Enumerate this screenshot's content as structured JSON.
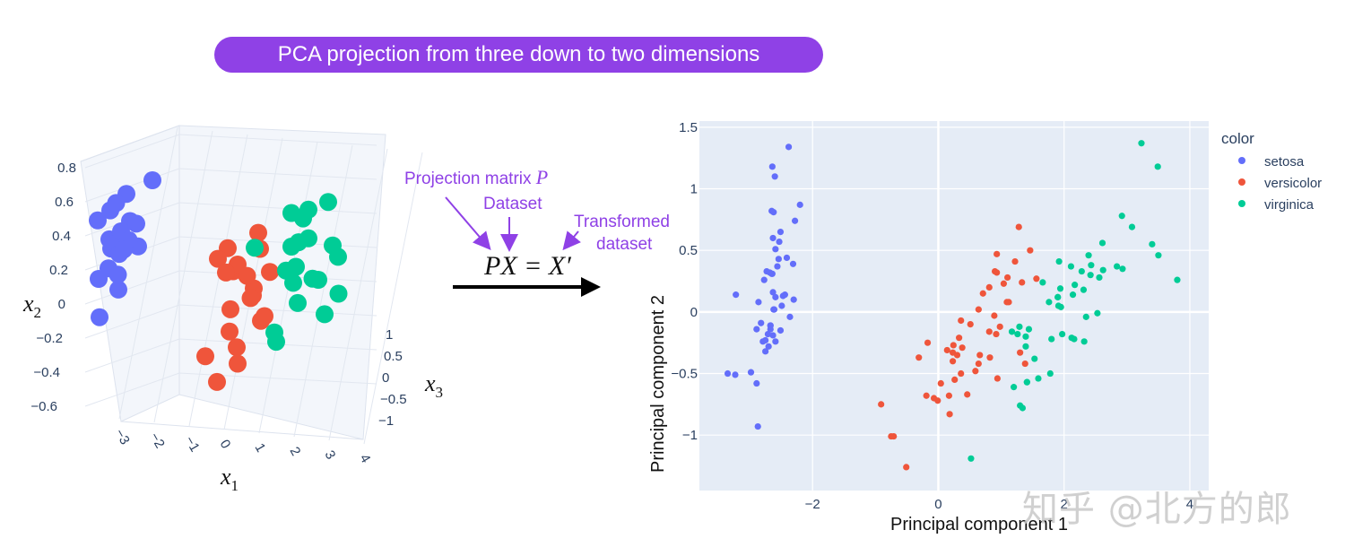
{
  "banner": {
    "title": "PCA projection from three down to two dimensions"
  },
  "annotations": {
    "projection_matrix": "Projection matrix",
    "projection_symbol": "P",
    "dataset": "Dataset",
    "transformed_line1": "Transformed",
    "transformed_line2": "dataset",
    "equation": "PX = X′"
  },
  "colors": {
    "banner": "#8f41e6",
    "annotation": "#8f41e6",
    "setosa": "#636efa",
    "versicolor": "#ef553b",
    "virginica": "#00cc96",
    "plot_bg": "#e5ecf6",
    "axis_text": "#2a3f5f"
  },
  "watermark": "知乎 @北方的郎",
  "chart_data": [
    {
      "type": "scatter3d",
      "axes": {
        "x1": {
          "label": "x",
          "subscript": "1",
          "ticks": [
            "−3",
            "−2",
            "−1",
            "0",
            "1",
            "2",
            "3",
            "4"
          ]
        },
        "x2": {
          "label": "x",
          "subscript": "2",
          "ticks": [
            "0.8",
            "0.6",
            "0.4",
            "0.2",
            "0",
            "−0.2",
            "−0.4",
            "−0.6"
          ]
        },
        "x3": {
          "label": "x",
          "subscript": "3",
          "ticks": [
            "1",
            "0.5",
            "0",
            "−0.5",
            "−1"
          ]
        }
      },
      "series": [
        {
          "name": "setosa",
          "points": [
            [
              -2.7,
              0.4,
              -0.1
            ],
            [
              -2.5,
              0.5,
              0.2
            ],
            [
              -2.9,
              0.3,
              0.1
            ],
            [
              -2.6,
              0.2,
              -0.2
            ],
            [
              -2.8,
              0.6,
              0.0
            ],
            [
              -2.4,
              0.3,
              0.3
            ],
            [
              -3.0,
              0.1,
              -0.1
            ],
            [
              -2.6,
              0.7,
              0.2
            ],
            [
              -2.3,
              0.4,
              -0.3
            ],
            [
              -2.7,
              0.0,
              0.1
            ],
            [
              -2.5,
              0.45,
              0.0
            ],
            [
              -2.8,
              0.25,
              0.2
            ],
            [
              -2.2,
              0.5,
              0.1
            ],
            [
              -2.9,
              0.55,
              -0.2
            ],
            [
              -2.6,
              0.35,
              0.25
            ],
            [
              -2.4,
              0.15,
              -0.15
            ],
            [
              -2.7,
              0.65,
              0.05
            ],
            [
              -2.55,
              0.3,
              0.1
            ],
            [
              -3.1,
              -0.2,
              0.0
            ],
            [
              -2.0,
              0.8,
              0.3
            ]
          ]
        },
        {
          "name": "versicolor",
          "points": [
            [
              0.5,
              0.2,
              0.1
            ],
            [
              0.8,
              0.0,
              0.3
            ],
            [
              1.0,
              0.3,
              -0.2
            ],
            [
              0.3,
              -0.1,
              0.2
            ],
            [
              1.2,
              0.1,
              0.0
            ],
            [
              0.6,
              0.4,
              -0.1
            ],
            [
              0.9,
              -0.2,
              0.4
            ],
            [
              1.4,
              0.2,
              0.2
            ],
            [
              0.2,
              0.3,
              0.0
            ],
            [
              1.1,
              -0.3,
              -0.3
            ],
            [
              0.7,
              0.15,
              0.25
            ],
            [
              1.3,
              0.05,
              -0.15
            ],
            [
              0.4,
              -0.25,
              0.1
            ],
            [
              1.0,
              0.35,
              0.3
            ],
            [
              0.1,
              -0.4,
              -0.2
            ],
            [
              1.5,
              -0.1,
              0.0
            ],
            [
              0.8,
              0.25,
              -0.3
            ],
            [
              0.5,
              -0.5,
              0.2
            ],
            [
              1.2,
              0.5,
              0.1
            ],
            [
              0.3,
              -0.6,
              -0.1
            ]
          ]
        },
        {
          "name": "virginica",
          "points": [
            [
              2.0,
              0.4,
              0.2
            ],
            [
              2.5,
              0.3,
              -0.1
            ],
            [
              2.2,
              0.6,
              0.3
            ],
            [
              3.0,
              0.2,
              0.0
            ],
            [
              1.8,
              0.1,
              0.4
            ],
            [
              2.7,
              0.5,
              -0.2
            ],
            [
              2.3,
              0.0,
              0.1
            ],
            [
              3.3,
              0.35,
              0.2
            ],
            [
              1.6,
              0.45,
              -0.3
            ],
            [
              2.8,
              -0.1,
              0.3
            ],
            [
              2.1,
              0.25,
              0.0
            ],
            [
              2.6,
              0.7,
              0.1
            ],
            [
              1.9,
              -0.2,
              -0.1
            ],
            [
              3.1,
              0.55,
              -0.3
            ],
            [
              2.4,
              0.15,
              0.35
            ],
            [
              3.5,
              0.1,
              0.05
            ],
            [
              2.0,
              0.65,
              0.2
            ],
            [
              2.9,
              0.4,
              0.4
            ],
            [
              1.7,
              -0.3,
              0.1
            ],
            [
              3.4,
              0.8,
              -0.1
            ]
          ]
        }
      ]
    },
    {
      "type": "scatter",
      "xlabel": "Principal component 1",
      "ylabel": "Principal component 2",
      "xlim": [
        -3.8,
        4.3
      ],
      "ylim": [
        -1.45,
        1.55
      ],
      "xticks": [
        -2,
        0,
        2,
        4
      ],
      "yticks": [
        -1,
        -0.5,
        0,
        0.5,
        1,
        1.5
      ],
      "xtick_labels": [
        "−2",
        "0",
        "2",
        "4"
      ],
      "ytick_labels": [
        "−1",
        "−0.5",
        "0",
        "0.5",
        "1",
        "1.5"
      ],
      "grid": true,
      "legend": {
        "title": "color",
        "placement": "right"
      },
      "series": [
        {
          "name": "setosa",
          "x": [
            -2.68,
            -2.71,
            -2.89,
            -2.75,
            -2.73,
            -2.28,
            -2.82,
            -2.63,
            -2.89,
            -2.67,
            -2.51,
            -2.61,
            -2.79,
            -3.23,
            -2.64,
            -2.38,
            -2.62,
            -2.65,
            -2.2,
            -2.59,
            -2.31,
            -2.54,
            -3.22,
            -2.3,
            -2.36,
            -2.51,
            -2.47,
            -2.56,
            -2.64,
            -2.63,
            -2.59,
            -2.41,
            -2.65,
            -2.6,
            -2.67,
            -2.86,
            -2.63,
            -2.77,
            -2.98,
            -2.49,
            -2.59,
            -2.67,
            -2.7,
            -2.62,
            -2.75,
            -2.53,
            -2.44,
            -3.35,
            -2.87
          ],
          "y": [
            0.32,
            -0.18,
            -0.14,
            -0.32,
            0.33,
            0.74,
            -0.09,
            0.16,
            -0.58,
            -0.11,
            0.65,
            0.02,
            -0.24,
            -0.51,
            1.18,
            1.34,
            0.81,
            0.31,
            0.87,
            0.51,
            0.39,
            0.43,
            0.14,
            0.1,
            -0.04,
            -0.15,
            0.13,
            0.37,
            0.31,
            -0.19,
            -0.24,
            0.44,
            0.82,
            1.1,
            -0.11,
            0.08,
            0.6,
            0.26,
            -0.49,
            0.05,
            0.12,
            -0.14,
            -0.28,
            0.02,
            -0.23,
            0.57,
            0.14,
            -0.5,
            -0.93
          ]
        },
        {
          "name": "versicolor",
          "x": [
            1.28,
            0.93,
            1.46,
            0.18,
            1.09,
            0.64,
            1.1,
            -0.75,
            1.04,
            -0.01,
            -0.51,
            0.51,
            0.26,
            0.98,
            -0.17,
            0.93,
            0.66,
            0.23,
            0.94,
            0.04,
            1.12,
            0.36,
            1.3,
            0.92,
            0.71,
            0.9,
            1.33,
            1.56,
            0.81,
            -0.31,
            -0.07,
            -0.19,
            0.14,
            1.38,
            0.59,
            0.81,
            1.22,
            0.82,
            0.24,
            0.17,
            0.46,
            0.89,
            0.23,
            -0.71,
            0.36,
            0.33,
            0.38,
            0.64,
            -0.91,
            0.3
          ],
          "y": [
            0.69,
            0.32,
            0.5,
            -0.83,
            0.08,
            -0.42,
            0.28,
            -1.01,
            0.23,
            -0.72,
            -1.26,
            -0.1,
            -0.55,
            -0.12,
            -0.25,
            0.47,
            -0.35,
            -0.33,
            -0.54,
            -0.58,
            0.08,
            -0.07,
            -0.33,
            -0.18,
            0.15,
            0.33,
            0.24,
            0.27,
            -0.16,
            -0.37,
            -0.7,
            -0.68,
            -0.31,
            -0.42,
            -0.48,
            0.2,
            0.41,
            -0.37,
            -0.27,
            -0.68,
            -0.67,
            -0.03,
            -0.4,
            -1.01,
            -0.5,
            -0.21,
            -0.29,
            0.02,
            -0.75,
            -0.35
          ]
        },
        {
          "name": "virginica",
          "x": [
            2.53,
            1.41,
            2.62,
            1.97,
            2.35,
            3.4,
            0.52,
            2.93,
            2.32,
            2.92,
            1.66,
            1.8,
            2.17,
            1.34,
            1.59,
            1.9,
            1.95,
            3.49,
            3.8,
            1.3,
            2.43,
            1.2,
            3.5,
            1.39,
            2.28,
            2.61,
            1.26,
            1.29,
            2.12,
            2.39,
            2.84,
            3.23,
            2.16,
            1.44,
            1.78,
            3.08,
            2.14,
            1.91,
            1.17,
            2.11,
            2.31,
            1.92,
            1.41,
            2.56,
            2.42,
            1.94,
            1.53,
            1.76,
            1.9,
            1.39
          ],
          "y": [
            -0.01,
            -0.57,
            0.34,
            -0.18,
            -0.04,
            0.55,
            -1.19,
            0.35,
            -0.24,
            0.78,
            0.24,
            -0.22,
            0.22,
            -0.78,
            -0.54,
            0.12,
            0.04,
            1.18,
            0.26,
            -0.76,
            0.38,
            -0.61,
            0.46,
            -0.2,
            0.33,
            0.56,
            -0.18,
            -0.12,
            -0.21,
            0.46,
            0.37,
            1.37,
            -0.22,
            -0.14,
            -0.5,
            0.69,
            0.14,
            0.05,
            -0.16,
            0.37,
            0.18,
            0.41,
            -0.57,
            0.28,
            0.3,
            0.19,
            -0.38,
            0.08,
            0.12,
            -0.28
          ]
        }
      ]
    }
  ]
}
